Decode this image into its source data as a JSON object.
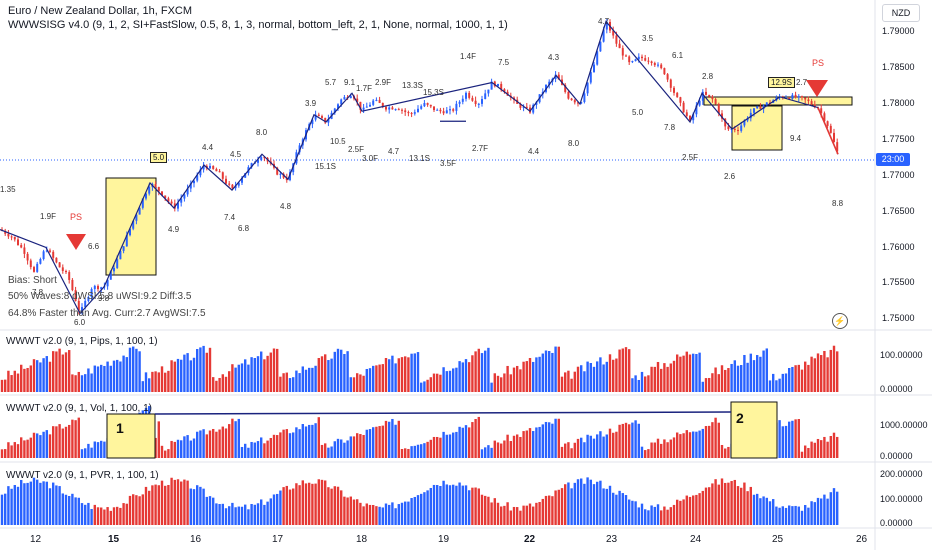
{
  "header": {
    "title": "Euro / New Zealand Dollar, 1h, FXCM",
    "indicator": "WWWSISG v4.0 (9, 1, 2, SI+FastSlow, 0.5, 8, 1, 3, normal, bottom_left, 2, 1, None, normal, 1000, 1, 1)",
    "currency_badge": "NZD"
  },
  "price_axis": {
    "labels": [
      "1.79000",
      "1.78500",
      "1.78000",
      "1.77500",
      "1.77000",
      "1.76500",
      "1.76000",
      "1.75500",
      "1.75000"
    ],
    "current_price_label": "23:00"
  },
  "info_panel": {
    "bias": "Bias: Short",
    "waves": "50% Waves:8 dWSI:5.8 uWSI:9.2 Diff:3.5",
    "speed": "64.8% Faster than Avg. Curr:2.7 AvgWSI:7.5"
  },
  "wave_labels": [
    "1.35",
    "1.9F",
    "6.6",
    "7.8",
    "6.0",
    "9.8",
    "5.0",
    "4.9",
    "4.4",
    "4.5",
    "7.4",
    "6.8",
    "8.0",
    "4.8",
    "3.9",
    "15.1S",
    "5.7",
    "9.1",
    "1.7F",
    "10.5",
    "2.5F",
    "3.0F",
    "2.9F",
    "4.7",
    "13.3S",
    "15.3S",
    "13.1S",
    "3.5F",
    "1.4F",
    "7.5",
    "2.7F",
    "4.3",
    "4.4",
    "8.0",
    "4.7",
    "3.5",
    "6.1",
    "5.0",
    "2.8",
    "7.8",
    "2.5F",
    "2.6",
    "12.9S",
    "2.7",
    "9.4",
    "8.8"
  ],
  "ps_labels": [
    "PS",
    "PS"
  ],
  "sub_panes": [
    {
      "title": "WWWT v2.0 (9, 1, Pips, 1, 100, 1)",
      "axis_labels": [
        "100.00000",
        "0.00000"
      ]
    },
    {
      "title": "WWWT v2.0 (9, 1, Vol, 1, 100, 1)",
      "axis_labels": [
        "1000.00000",
        "0.00000"
      ],
      "box_numbers": [
        "1",
        "2"
      ]
    },
    {
      "title": "WWWT v2.0 (9, 1, PVR, 1, 100, 1)",
      "axis_labels": [
        "200.00000",
        "100.00000",
        "0.00000"
      ]
    }
  ],
  "time_axis": {
    "labels": [
      "12",
      "15",
      "16",
      "17",
      "18",
      "19",
      "22",
      "23",
      "24",
      "25",
      "26"
    ],
    "bold": [
      "15",
      "22"
    ]
  },
  "colors": {
    "bull": "#2962ff",
    "bear": "#e53935",
    "highlight": "#fff59d",
    "current_price": "#2962ff"
  },
  "chart_data": {
    "type": "candlestick",
    "symbol": "EURNZD",
    "timeframe": "1h",
    "ylim": [
      1.7485,
      1.7945
    ],
    "price_path": [
      [
        0,
        1.7625
      ],
      [
        12,
        1.7615
      ],
      [
        24,
        1.7595
      ],
      [
        34,
        1.7565
      ],
      [
        46,
        1.76
      ],
      [
        58,
        1.7575
      ],
      [
        68,
        1.756
      ],
      [
        80,
        1.7508
      ],
      [
        92,
        1.7545
      ],
      [
        104,
        1.7545
      ],
      [
        118,
        1.7585
      ],
      [
        134,
        1.764
      ],
      [
        150,
        1.769
      ],
      [
        162,
        1.7675
      ],
      [
        174,
        1.7655
      ],
      [
        190,
        1.7685
      ],
      [
        204,
        1.7715
      ],
      [
        218,
        1.7705
      ],
      [
        232,
        1.768
      ],
      [
        248,
        1.771
      ],
      [
        262,
        1.773
      ],
      [
        276,
        1.7705
      ],
      [
        288,
        1.7695
      ],
      [
        300,
        1.7745
      ],
      [
        314,
        1.7785
      ],
      [
        326,
        1.7775
      ],
      [
        340,
        1.7805
      ],
      [
        352,
        1.7815
      ],
      [
        362,
        1.779
      ],
      [
        374,
        1.7805
      ],
      [
        386,
        1.7795
      ],
      [
        398,
        1.7795
      ],
      [
        410,
        1.7785
      ],
      [
        424,
        1.78
      ],
      [
        438,
        1.779
      ],
      [
        452,
        1.779
      ],
      [
        466,
        1.7815
      ],
      [
        478,
        1.78
      ],
      [
        492,
        1.783
      ],
      [
        504,
        1.782
      ],
      [
        516,
        1.78
      ],
      [
        530,
        1.779
      ],
      [
        546,
        1.7825
      ],
      [
        556,
        1.784
      ],
      [
        568,
        1.781
      ],
      [
        580,
        1.78
      ],
      [
        594,
        1.7855
      ],
      [
        606,
        1.7915
      ],
      [
        618,
        1.788
      ],
      [
        630,
        1.7855
      ],
      [
        640,
        1.7865
      ],
      [
        652,
        1.786
      ],
      [
        664,
        1.7845
      ],
      [
        678,
        1.7805
      ],
      [
        690,
        1.7775
      ],
      [
        702,
        1.7815
      ],
      [
        714,
        1.7805
      ],
      [
        726,
        1.7765
      ],
      [
        738,
        1.7765
      ],
      [
        752,
        1.779
      ],
      [
        766,
        1.78
      ],
      [
        780,
        1.781
      ],
      [
        794,
        1.781
      ],
      [
        806,
        1.7805
      ],
      [
        818,
        1.7795
      ],
      [
        828,
        1.777
      ],
      [
        838,
        1.773
      ]
    ],
    "pane1_pips_range": [
      0,
      100
    ],
    "pane2_vol_range": [
      0,
      1000
    ],
    "pane3_pvr_range": [
      0,
      200
    ],
    "annotations": {
      "ps_markers": 2,
      "bias": "Short"
    }
  }
}
